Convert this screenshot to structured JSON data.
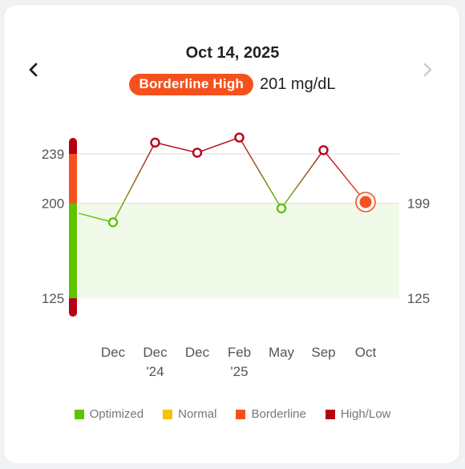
{
  "header": {
    "date": "Oct 14, 2025",
    "badge_label": "Borderline High",
    "badge_color": "#f4511e",
    "reading": "201 mg/dL",
    "prev_icon": "chevron-left-icon",
    "next_icon": "chevron-right-icon"
  },
  "chart_data": {
    "type": "line",
    "categories": [
      "Dec",
      "Dec\n'24",
      "Dec",
      "Feb\n'25",
      "May",
      "Sep",
      "Oct"
    ],
    "values": [
      185,
      248,
      240,
      252,
      196,
      242,
      201
    ],
    "ylim": [
      125,
      239
    ],
    "left_ticks": [
      239,
      200,
      125
    ],
    "right_ticks": [
      199,
      125
    ],
    "optimal_band": [
      125,
      199
    ],
    "current_index": 6,
    "grid": true
  },
  "legend": [
    {
      "label": "Optimized",
      "color": "#5ec400"
    },
    {
      "label": "Normal",
      "color": "#f6c300"
    },
    {
      "label": "Borderline",
      "color": "#f4511e"
    },
    {
      "label": "High/Low",
      "color": "#b70016"
    }
  ]
}
